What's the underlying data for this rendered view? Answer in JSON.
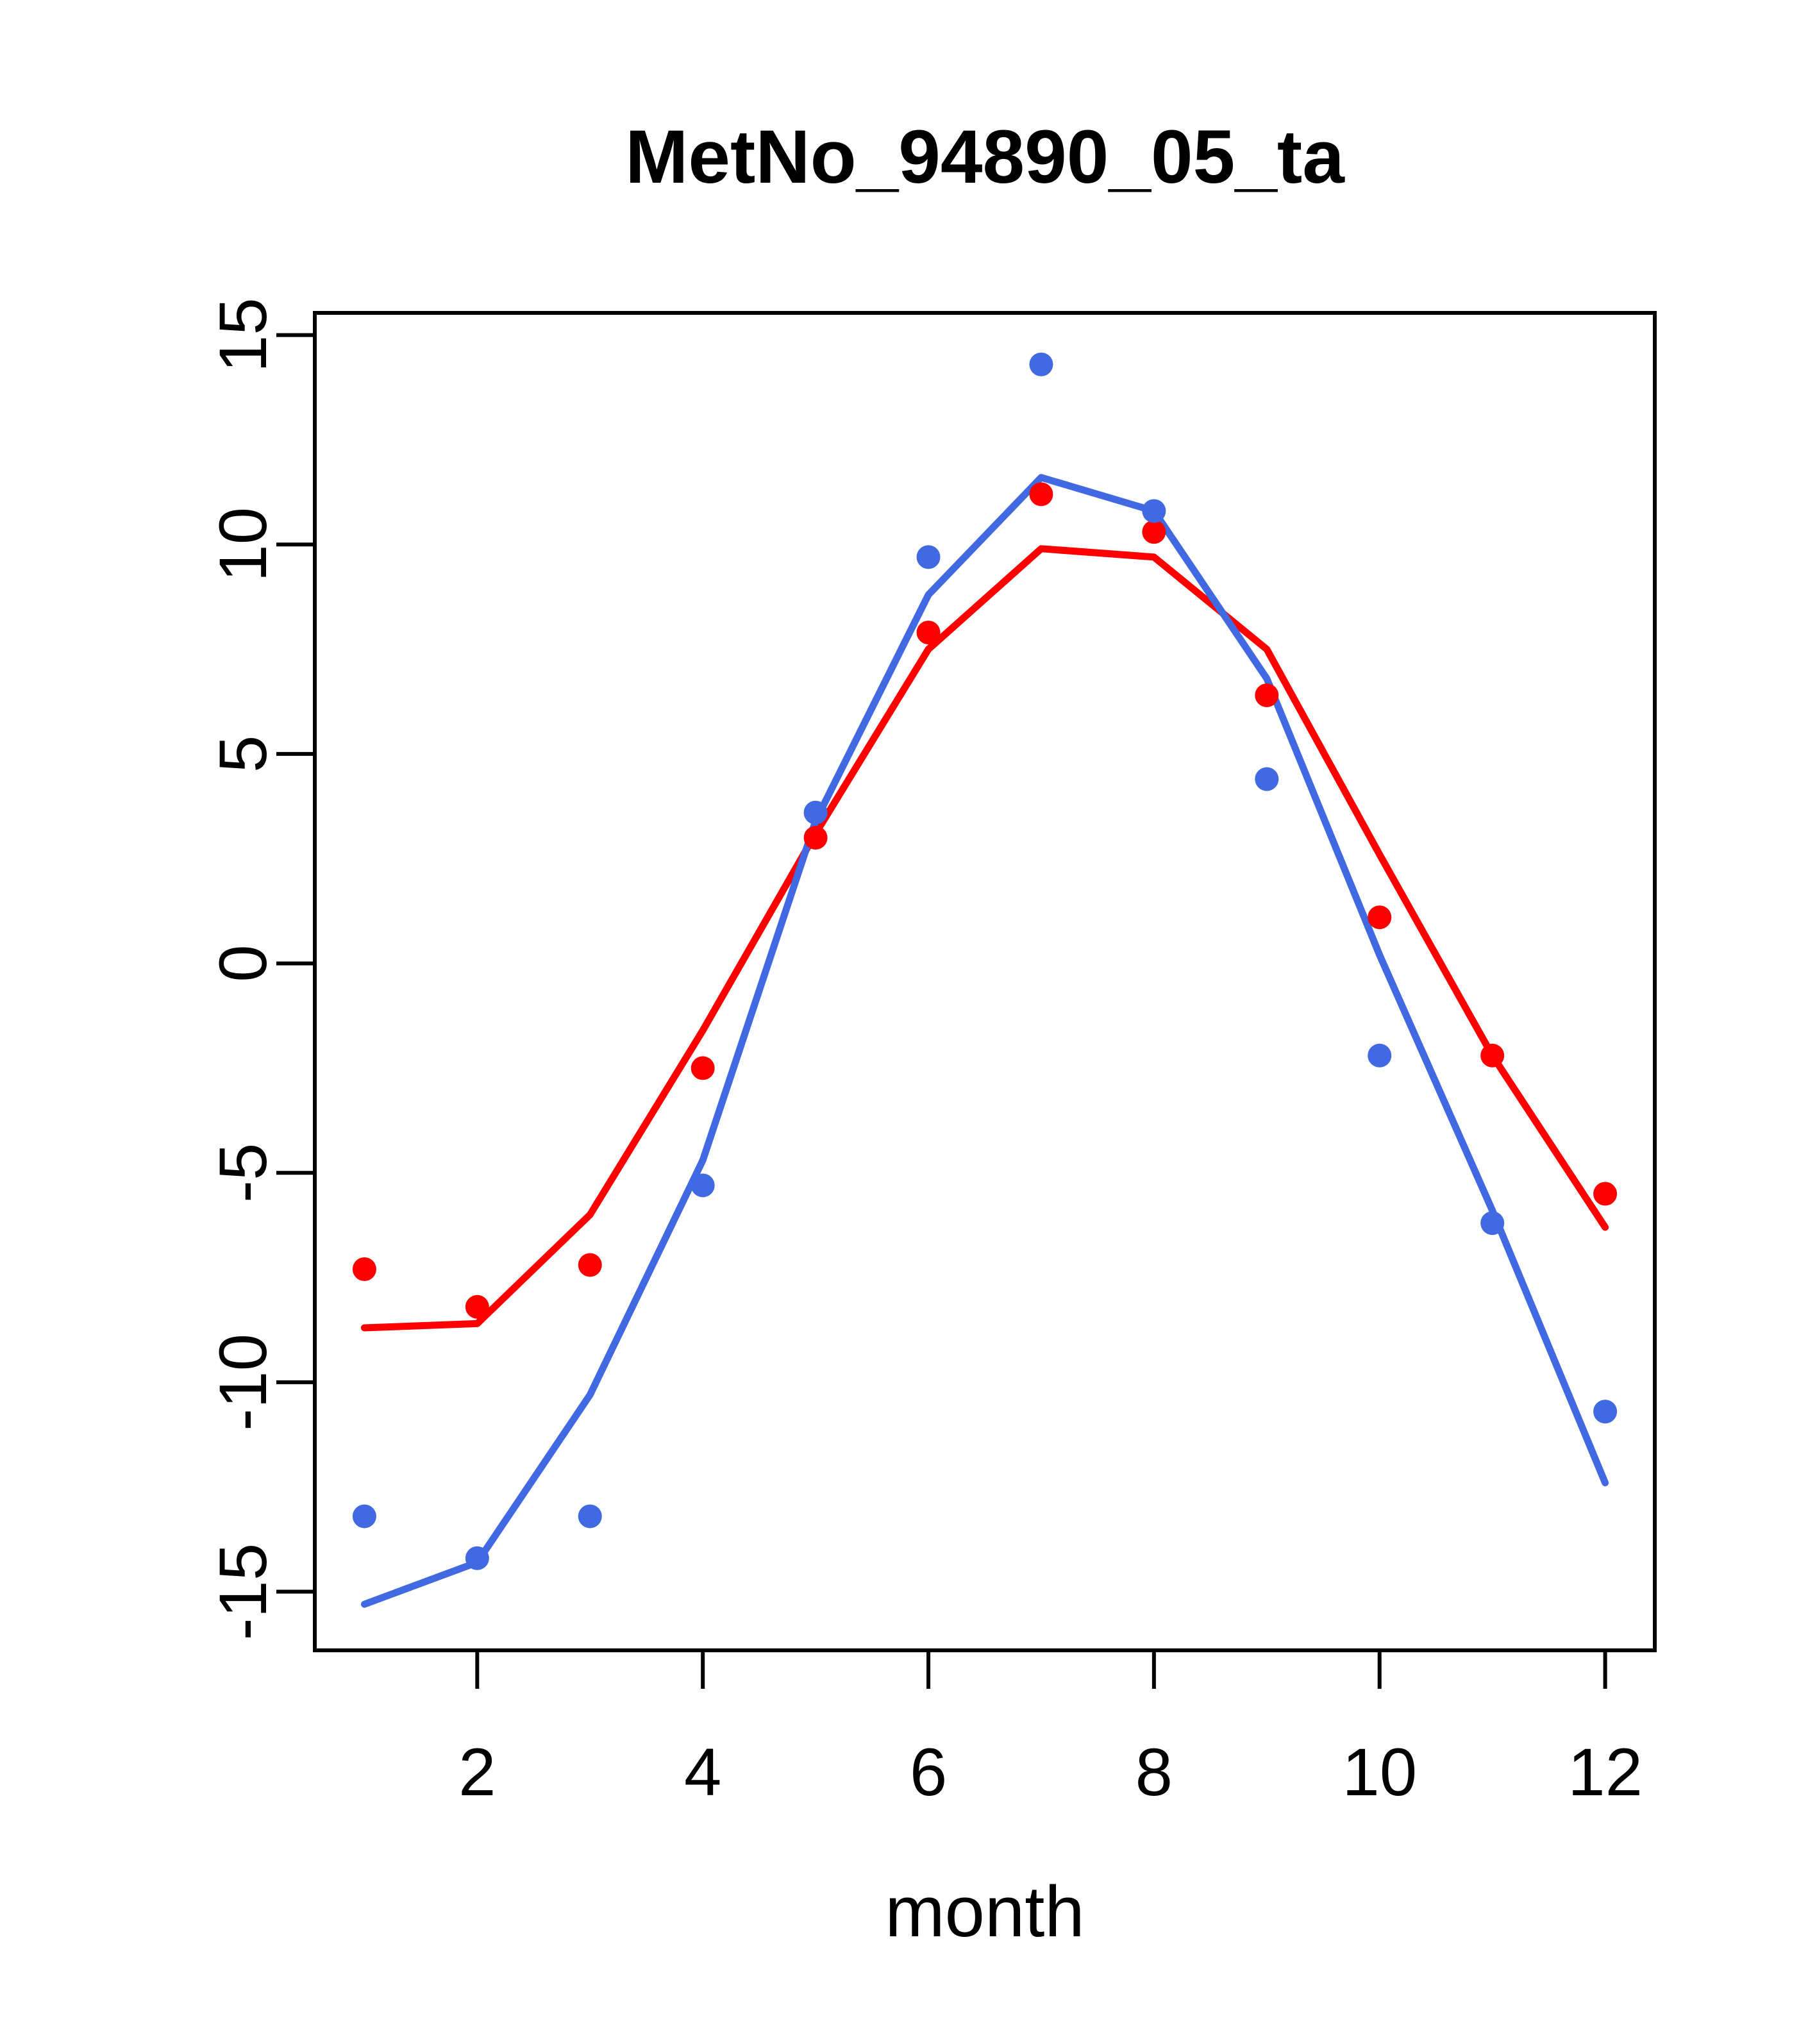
{
  "chart_data": {
    "type": "line",
    "title": "MetNo_94890_05_ta",
    "xlabel": "month",
    "ylabel": "",
    "x": [
      1,
      2,
      3,
      4,
      5,
      6,
      7,
      8,
      9,
      10,
      11,
      12
    ],
    "x_ticks": [
      2,
      4,
      6,
      8,
      10,
      12
    ],
    "y_ticks": [
      -15,
      -10,
      -5,
      0,
      5,
      10,
      15
    ],
    "xlim": [
      0.56,
      12.44
    ],
    "ylim": [
      -16.4,
      15.53
    ],
    "grid": false,
    "legend": "none",
    "series": [
      {
        "name": "red-line",
        "type": "line",
        "color": "#ff0000",
        "values": [
          -8.7,
          -8.6,
          -6.0,
          -1.6,
          3.1,
          7.5,
          9.9,
          9.7,
          7.5,
          2.6,
          -2.2,
          -6.3
        ]
      },
      {
        "name": "blue-line",
        "type": "line",
        "color": "#4169e1",
        "values": [
          -15.3,
          -14.3,
          -10.3,
          -4.7,
          3.4,
          8.8,
          11.6,
          10.8,
          6.8,
          0.2,
          -5.9,
          -12.4
        ]
      },
      {
        "name": "red-points",
        "type": "points",
        "color": "#ff0000",
        "values": [
          -7.3,
          -8.2,
          -7.2,
          -2.5,
          3.0,
          7.9,
          11.2,
          10.3,
          6.4,
          1.1,
          -2.2,
          -5.5
        ]
      },
      {
        "name": "blue-points",
        "type": "points",
        "color": "#4169e1",
        "values": [
          -13.2,
          -14.2,
          -13.2,
          -5.3,
          3.6,
          9.7,
          14.3,
          10.8,
          4.4,
          -2.2,
          -6.2,
          -10.7
        ]
      }
    ]
  },
  "colors": {
    "red": "#ff0000",
    "blue": "#4169e1",
    "axis": "#000000",
    "background": "#ffffff"
  }
}
